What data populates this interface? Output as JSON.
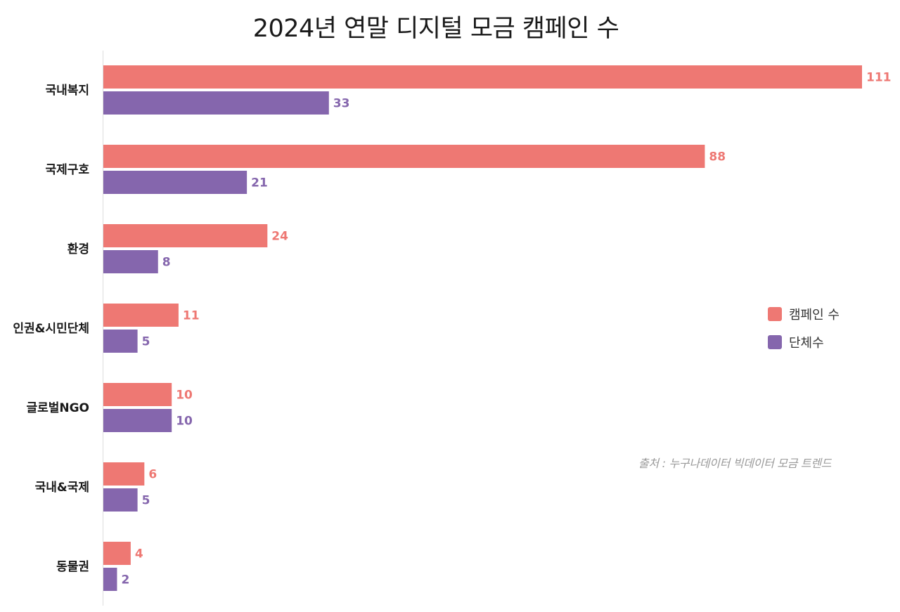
{
  "chart_data": {
    "type": "bar",
    "orientation": "horizontal",
    "title": "2024년 연말 디지털 모금 캠페인 수",
    "categories": [
      "국내복지",
      "국제구호",
      "환경",
      "인권&시민단체",
      "글로벌NGO",
      "국내&국제",
      "동물권"
    ],
    "series": [
      {
        "name": "캠페인 수",
        "color": "#ee7873",
        "values": [
          111,
          88,
          24,
          11,
          10,
          6,
          4
        ]
      },
      {
        "name": "단체수",
        "color": "#8566ad",
        "values": [
          33,
          21,
          8,
          5,
          10,
          5,
          2
        ]
      }
    ],
    "xlim": [
      0,
      111
    ],
    "grid": false,
    "legend_position": "right"
  },
  "source_note": "출처 : 누구나데이터 빅데이터 모금 트렌드"
}
